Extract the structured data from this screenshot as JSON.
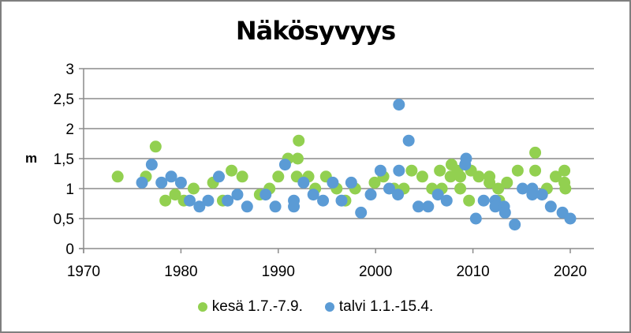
{
  "chart_data": {
    "type": "scatter",
    "title": "Näkösyvyys",
    "xlabel": "",
    "ylabel": "m",
    "xlim": [
      1970,
      2022
    ],
    "ylim": [
      0,
      3
    ],
    "x_ticks": [
      "1970",
      "1980",
      "1990",
      "2000",
      "2010",
      "2020"
    ],
    "y_ticks": [
      "0",
      "0,5",
      "1",
      "1,5",
      "2",
      "2,5",
      "3"
    ],
    "grid": "horizontal",
    "legend_position": "bottom",
    "series": [
      {
        "name": "kesä 1.7.-7.9.",
        "color": "#92D050",
        "points": [
          [
            1973.5,
            1.2
          ],
          [
            1976.4,
            1.2
          ],
          [
            1977.4,
            1.7
          ],
          [
            1978.4,
            0.8
          ],
          [
            1979.4,
            0.9
          ],
          [
            1980.3,
            0.8
          ],
          [
            1981.3,
            1.0
          ],
          [
            1983.3,
            1.1
          ],
          [
            1984.3,
            0.8
          ],
          [
            1985.2,
            1.3
          ],
          [
            1986.3,
            1.2
          ],
          [
            1988.1,
            0.9
          ],
          [
            1989.1,
            1.0
          ],
          [
            1990.0,
            1.2
          ],
          [
            1991.0,
            1.5
          ],
          [
            1991.9,
            1.2
          ],
          [
            1992.0,
            1.5
          ],
          [
            1992.1,
            1.8
          ],
          [
            1993.1,
            1.2
          ],
          [
            1993.8,
            1.0
          ],
          [
            1994.9,
            1.2
          ],
          [
            1996.0,
            1.0
          ],
          [
            1996.9,
            0.8
          ],
          [
            1997.9,
            1.0
          ],
          [
            1999.9,
            1.1
          ],
          [
            2000.8,
            1.2
          ],
          [
            2001.9,
            1.0
          ],
          [
            2002.9,
            1.0
          ],
          [
            2003.7,
            1.3
          ],
          [
            2004.8,
            1.2
          ],
          [
            2005.8,
            1.0
          ],
          [
            2006.6,
            1.3
          ],
          [
            2006.8,
            1.0
          ],
          [
            2007.7,
            1.2
          ],
          [
            2007.8,
            1.4
          ],
          [
            2008.4,
            1.3
          ],
          [
            2008.7,
            1.2
          ],
          [
            2008.7,
            1.0
          ],
          [
            2009.6,
            0.8
          ],
          [
            2009.8,
            1.3
          ],
          [
            2010.6,
            1.2
          ],
          [
            2011.7,
            1.2
          ],
          [
            2011.7,
            1.1
          ],
          [
            2012.6,
            1.0
          ],
          [
            2012.7,
            0.8
          ],
          [
            2013.5,
            1.1
          ],
          [
            2014.6,
            1.3
          ],
          [
            2016.4,
            1.6
          ],
          [
            2016.4,
            1.3
          ],
          [
            2017.6,
            1.0
          ],
          [
            2018.5,
            1.2
          ],
          [
            2019.4,
            1.3
          ],
          [
            2019.4,
            1.1
          ],
          [
            2019.5,
            1.0
          ]
        ]
      },
      {
        "name": "talvi 1.1.-15.4.",
        "color": "#5B9BD5",
        "points": [
          [
            1976.0,
            1.1
          ],
          [
            1977.0,
            1.4
          ],
          [
            1978.0,
            1.1
          ],
          [
            1979.0,
            1.2
          ],
          [
            1980.0,
            1.1
          ],
          [
            1980.9,
            0.8
          ],
          [
            1981.9,
            0.7
          ],
          [
            1982.8,
            0.8
          ],
          [
            1983.9,
            1.2
          ],
          [
            1984.8,
            0.8
          ],
          [
            1985.8,
            0.9
          ],
          [
            1986.8,
            0.7
          ],
          [
            1988.7,
            0.9
          ],
          [
            1989.7,
            0.7
          ],
          [
            1990.7,
            1.4
          ],
          [
            1991.6,
            0.8
          ],
          [
            1991.6,
            0.7
          ],
          [
            1992.6,
            1.1
          ],
          [
            1993.6,
            0.9
          ],
          [
            1994.6,
            0.8
          ],
          [
            1995.6,
            1.1
          ],
          [
            1996.5,
            0.8
          ],
          [
            1997.5,
            1.1
          ],
          [
            1998.5,
            0.6
          ],
          [
            1999.5,
            0.9
          ],
          [
            2000.5,
            1.3
          ],
          [
            2001.4,
            1.0
          ],
          [
            2002.3,
            0.9
          ],
          [
            2002.4,
            1.3
          ],
          [
            2002.4,
            2.4
          ],
          [
            2003.4,
            1.8
          ],
          [
            2004.4,
            0.7
          ],
          [
            2005.4,
            0.7
          ],
          [
            2006.4,
            0.9
          ],
          [
            2007.3,
            0.8
          ],
          [
            2009.3,
            1.5
          ],
          [
            2009.2,
            1.4
          ],
          [
            2010.3,
            0.5
          ],
          [
            2011.1,
            0.8
          ],
          [
            2012.3,
            0.8
          ],
          [
            2012.3,
            0.7
          ],
          [
            2013.2,
            0.7
          ],
          [
            2013.3,
            0.6
          ],
          [
            2014.3,
            0.4
          ],
          [
            2015.1,
            1.0
          ],
          [
            2016.1,
            1.0
          ],
          [
            2016.1,
            0.9
          ],
          [
            2017.1,
            0.9
          ],
          [
            2018.0,
            0.7
          ],
          [
            2019.2,
            0.6
          ],
          [
            2020.0,
            0.5
          ]
        ]
      }
    ]
  }
}
